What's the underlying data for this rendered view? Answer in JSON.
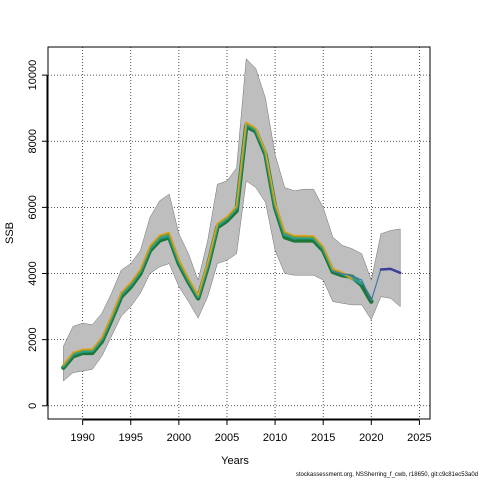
{
  "chart_data": {
    "type": "line",
    "title": "",
    "xlabel": "Years",
    "ylabel": "SSB",
    "xlim": [
      1986.4,
      2026.1
    ],
    "ylim": [
      -400,
      10850
    ],
    "x_ticks": [
      1990,
      1995,
      2000,
      2005,
      2010,
      2015,
      2020,
      2025
    ],
    "y_ticks": [
      0,
      2000,
      4000,
      6000,
      8000,
      10000
    ],
    "grid": true,
    "grid_style": "dotted",
    "legend": "none",
    "colors": {
      "band": "#bebebe",
      "band_edge": "#555555",
      "grid": "#222222",
      "series": [
        "#1b7837",
        "#2a9d8f",
        "#8c9d2a",
        "#e6a121",
        "#4477aa",
        "#3a3f99"
      ]
    },
    "confidence_band": {
      "x": [
        1988,
        1989,
        1990,
        1991,
        1992,
        1993,
        1994,
        1995,
        1996,
        1997,
        1998,
        1999,
        2000,
        2001,
        2002,
        2003,
        2004,
        2005,
        2006,
        2007,
        2008,
        2009,
        2010,
        2011,
        2012,
        2013,
        2014,
        2015,
        2016,
        2017,
        2018,
        2019,
        2020,
        2021,
        2022,
        2023
      ],
      "lower": [
        750,
        1000,
        1050,
        1100,
        1500,
        2100,
        2700,
        3000,
        3400,
        4000,
        4200,
        4300,
        3600,
        3150,
        2650,
        3300,
        4300,
        4400,
        4600,
        6800,
        6600,
        6150,
        4700,
        4000,
        3950,
        3950,
        3950,
        3800,
        3150,
        3100,
        3050,
        3050,
        2600,
        3300,
        3250,
        3000
      ],
      "upper": [
        1800,
        2400,
        2500,
        2450,
        2800,
        3400,
        4100,
        4300,
        4700,
        5700,
        6200,
        6400,
        5200,
        4600,
        3800,
        5000,
        6700,
        6800,
        7200,
        10500,
        10200,
        9300,
        7600,
        6600,
        6500,
        6550,
        6550,
        6000,
        5100,
        4850,
        4750,
        4600,
        3800,
        5200,
        5300,
        5350
      ]
    },
    "series": [
      {
        "x": [
          1988,
          1989,
          1990,
          1991,
          1992,
          1993,
          1994,
          1995,
          1996,
          1997,
          1998,
          1999,
          2000,
          2001,
          2002,
          2003,
          2004,
          2005,
          2006,
          2007,
          2008,
          2009,
          2010,
          2011,
          2012,
          2013,
          2014,
          2015,
          2016,
          2017,
          2018,
          2019,
          2020
        ],
        "values": [
          1150,
          1500,
          1600,
          1600,
          1950,
          2600,
          3300,
          3600,
          4000,
          4700,
          5000,
          5100,
          4300,
          3750,
          3250,
          4200,
          5400,
          5600,
          5900,
          8450,
          8300,
          7600,
          6000,
          5100,
          5000,
          5000,
          5000,
          4700,
          4050,
          3950,
          3900,
          3650,
          3150
        ]
      },
      {
        "x": [
          1988,
          1989,
          1990,
          1991,
          1992,
          1993,
          1994,
          1995,
          1996,
          1997,
          1998,
          1999,
          2000,
          2001,
          2002,
          2003,
          2004,
          2005,
          2006,
          2007,
          2008,
          2009,
          2010,
          2011,
          2012,
          2013,
          2014,
          2015,
          2016,
          2017,
          2018,
          2019
        ],
        "values": [
          1200,
          1560,
          1650,
          1660,
          2010,
          2660,
          3360,
          3660,
          4070,
          4760,
          5070,
          5150,
          4360,
          3800,
          3300,
          4260,
          5450,
          5660,
          5980,
          8520,
          8350,
          7650,
          6060,
          5180,
          5070,
          5080,
          5070,
          4760,
          4100,
          4000,
          3860,
          3700
        ]
      },
      {
        "x": [
          1988,
          1989,
          1990,
          1991,
          1992,
          1993,
          1994,
          1995,
          1996,
          1997,
          1998,
          1999,
          2000,
          2001,
          2002,
          2003,
          2004,
          2005,
          2006,
          2007,
          2008,
          2009,
          2010,
          2011,
          2012,
          2013,
          2014,
          2015,
          2016,
          2017,
          2018
        ],
        "values": [
          1220,
          1600,
          1690,
          1700,
          2060,
          2700,
          3410,
          3710,
          4110,
          4810,
          5130,
          5210,
          4400,
          3840,
          3330,
          4300,
          5500,
          5700,
          6020,
          8560,
          8380,
          7690,
          6100,
          5240,
          5120,
          5120,
          5110,
          4800,
          4130,
          4020,
          3820
        ]
      },
      {
        "x": [
          1988,
          1989,
          1990,
          1991,
          1992,
          1993,
          1994,
          1995,
          1996,
          1997,
          1998,
          1999,
          2000,
          2001,
          2002,
          2003,
          2004,
          2005,
          2006,
          2007,
          2008,
          2009,
          2010,
          2011,
          2012,
          2013,
          2014,
          2015,
          2016,
          2017,
          2018
        ],
        "values": [
          1250,
          1620,
          1710,
          1720,
          2080,
          2720,
          3430,
          3740,
          4140,
          4850,
          5160,
          5250,
          4430,
          3860,
          3350,
          4320,
          5520,
          5730,
          6050,
          8580,
          8400,
          7700,
          6130,
          5270,
          5150,
          5150,
          5140,
          4830,
          4150,
          4040,
          3830
        ]
      },
      {
        "x": [
          2016,
          2017,
          2018,
          2019,
          2020,
          2021,
          2022
        ],
        "values": [
          4060,
          3990,
          3930,
          3800,
          3180,
          4130,
          4150
        ]
      },
      {
        "x": [
          2021,
          2022,
          2023
        ],
        "values": [
          4120,
          4140,
          4020
        ]
      }
    ]
  },
  "footnote": "stockassessment.org, NSSherring_f_cwb, r18650, git:c9c81ec53a0d"
}
